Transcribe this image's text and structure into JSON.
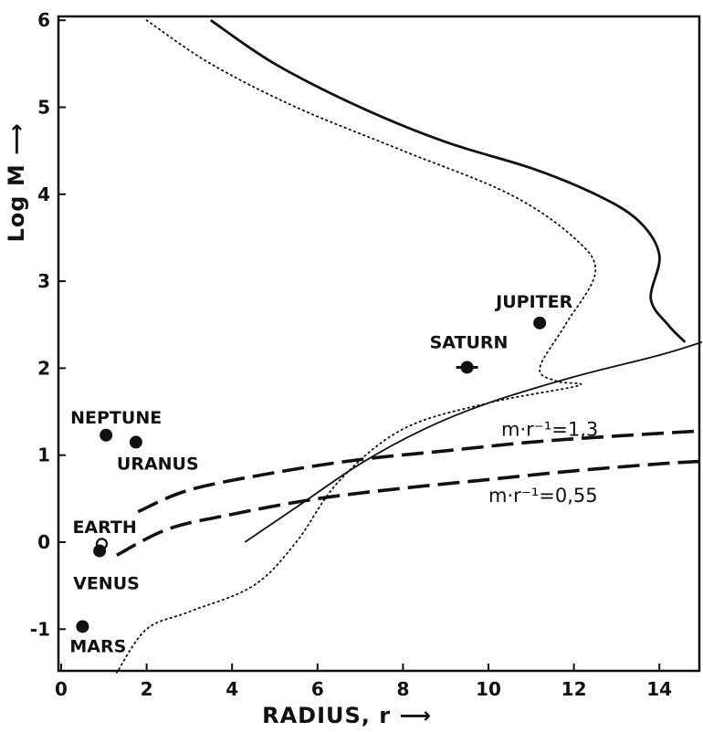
{
  "chart_data": {
    "type": "line",
    "xlabel": "RADIUS, r ⟶",
    "ylabel": "Log M ⟶",
    "xlim": [
      0,
      15
    ],
    "ylim": [
      -1.5,
      6
    ],
    "x_ticks": [
      "0",
      "2",
      "4",
      "6",
      "8",
      "10",
      "12",
      "14"
    ],
    "y_ticks": [
      "-1",
      "0",
      "1",
      "2",
      "3",
      "4",
      "5",
      "6"
    ],
    "grid": false,
    "series": [
      {
        "style": "solid-thick",
        "points": [
          [
            3.5,
            6.0
          ],
          [
            5.0,
            5.5
          ],
          [
            7.0,
            5.0
          ],
          [
            9.0,
            4.6
          ],
          [
            11.0,
            4.3
          ],
          [
            12.5,
            4.0
          ],
          [
            13.5,
            3.7
          ],
          [
            14.0,
            3.3
          ],
          [
            13.8,
            2.8
          ],
          [
            14.2,
            2.5
          ],
          [
            14.6,
            2.3
          ]
        ]
      },
      {
        "style": "dotted",
        "points": [
          [
            2.0,
            6.0
          ],
          [
            3.5,
            5.5
          ],
          [
            5.5,
            5.0
          ],
          [
            8.0,
            4.5
          ],
          [
            10.5,
            4.0
          ],
          [
            12.0,
            3.5
          ],
          [
            12.5,
            3.1
          ],
          [
            11.8,
            2.5
          ],
          [
            11.2,
            2.0
          ],
          [
            11.6,
            1.85
          ],
          [
            12.1,
            1.8
          ],
          [
            10.0,
            1.6
          ],
          [
            8.0,
            1.3
          ],
          [
            6.5,
            0.7
          ],
          [
            5.5,
            0.0
          ],
          [
            4.5,
            -0.5
          ],
          [
            3.0,
            -0.8
          ],
          [
            2.0,
            -1.0
          ],
          [
            1.3,
            -1.5
          ]
        ]
      },
      {
        "style": "solid",
        "points": [
          [
            4.3,
            0.0
          ],
          [
            5.5,
            0.4
          ],
          [
            7.0,
            0.9
          ],
          [
            8.5,
            1.3
          ],
          [
            10.0,
            1.6
          ],
          [
            12.0,
            1.9
          ],
          [
            14.0,
            2.15
          ],
          [
            15.0,
            2.3
          ]
        ]
      },
      {
        "name": "m·r⁻¹=1,3",
        "style": "dashed",
        "points": [
          [
            1.8,
            0.35
          ],
          [
            3.0,
            0.6
          ],
          [
            5.0,
            0.8
          ],
          [
            7.0,
            0.95
          ],
          [
            9.0,
            1.05
          ],
          [
            11.0,
            1.15
          ],
          [
            13.0,
            1.22
          ],
          [
            15.0,
            1.28
          ]
        ]
      },
      {
        "name": "m·r⁻¹=0,55",
        "style": "dashed",
        "points": [
          [
            1.3,
            -0.15
          ],
          [
            2.5,
            0.15
          ],
          [
            4.0,
            0.32
          ],
          [
            6.0,
            0.5
          ],
          [
            8.0,
            0.62
          ],
          [
            10.0,
            0.72
          ],
          [
            12.0,
            0.82
          ],
          [
            14.0,
            0.9
          ],
          [
            15.0,
            0.93
          ]
        ]
      }
    ],
    "planets": [
      {
        "name": "JUPITER",
        "x": 11.2,
        "y": 2.52,
        "marker": "filled"
      },
      {
        "name": "SATURN",
        "x": 9.5,
        "y": 2.01,
        "marker": "ringed"
      },
      {
        "name": "NEPTUNE",
        "x": 1.05,
        "y": 1.23,
        "marker": "filled"
      },
      {
        "name": "URANUS",
        "x": 1.75,
        "y": 1.15,
        "marker": "filled"
      },
      {
        "name": "EARTH",
        "x": 0.95,
        "y": -0.02,
        "marker": "open"
      },
      {
        "name": "VENUS",
        "x": 0.9,
        "y": -0.1,
        "marker": "filled"
      },
      {
        "name": "MARS",
        "x": 0.5,
        "y": -0.97,
        "marker": "filled"
      }
    ],
    "annotations": [
      {
        "text": "m·r⁻¹=1,3",
        "x": 10.3,
        "y": 1.22
      },
      {
        "text": "m·r⁻¹=0,55",
        "x": 10.0,
        "y": 0.46
      }
    ]
  }
}
